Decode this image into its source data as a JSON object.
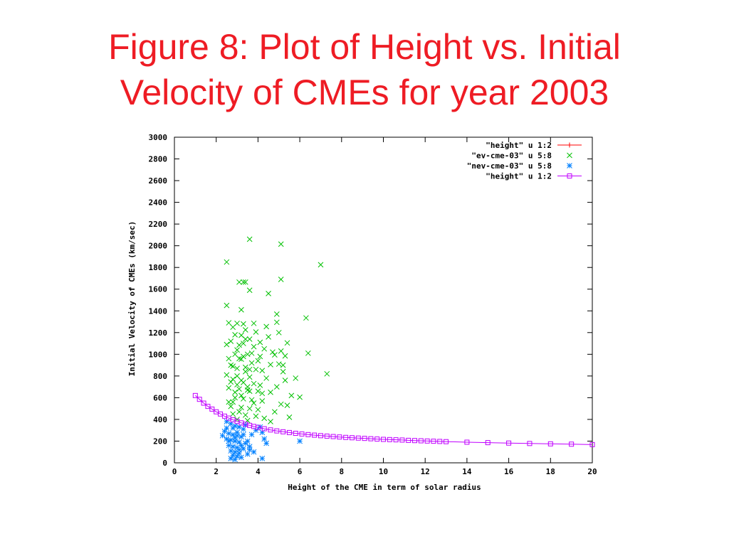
{
  "slide": {
    "title_line1": "Figure 8: Plot of Height vs. Initial",
    "title_line2": "Velocity of CMEs for year 2003",
    "title_color": "#ee1c24"
  },
  "chart_data": {
    "type": "scatter",
    "title": "",
    "xlabel": "Height of the CME in term of solar radius",
    "ylabel": "Initial Velocity of CMEs (km/sec)",
    "xlim": [
      0,
      20
    ],
    "ylim": [
      0,
      3000
    ],
    "x_ticks": [
      0,
      2,
      4,
      6,
      8,
      10,
      12,
      14,
      16,
      18,
      20
    ],
    "y_ticks": [
      0,
      200,
      400,
      600,
      800,
      1000,
      1200,
      1400,
      1600,
      1800,
      2000,
      2200,
      2400,
      2600,
      2800,
      3000
    ],
    "grid": false,
    "legend_position": "top-right",
    "series": [
      {
        "name": "\"height\" u 1:2",
        "marker": "plus-line",
        "color": "#ff0000",
        "points": []
      },
      {
        "name": "\"ev-cme-03\" u 5:8",
        "marker": "cross",
        "color": "#00c000",
        "points": [
          [
            3.6,
            2060
          ],
          [
            5.1,
            2015
          ],
          [
            2.5,
            1850
          ],
          [
            7.0,
            1825
          ],
          [
            5.1,
            1690
          ],
          [
            3.1,
            1665
          ],
          [
            3.3,
            1665
          ],
          [
            3.4,
            1665
          ],
          [
            3.6,
            1590
          ],
          [
            4.5,
            1560
          ],
          [
            2.5,
            1450
          ],
          [
            3.2,
            1410
          ],
          [
            4.9,
            1370
          ],
          [
            6.3,
            1335
          ],
          [
            3.8,
            1285
          ],
          [
            4.9,
            1295
          ],
          [
            2.6,
            1290
          ],
          [
            3.0,
            1285
          ],
          [
            3.3,
            1280
          ],
          [
            4.4,
            1255
          ],
          [
            2.8,
            1250
          ],
          [
            3.4,
            1225
          ],
          [
            3.9,
            1205
          ],
          [
            5.0,
            1200
          ],
          [
            3.2,
            1175
          ],
          [
            4.5,
            1160
          ],
          [
            3.6,
            1140
          ],
          [
            2.7,
            1120
          ],
          [
            4.1,
            1110
          ],
          [
            5.4,
            1105
          ],
          [
            2.5,
            1090
          ],
          [
            3.1,
            1085
          ],
          [
            3.8,
            1070
          ],
          [
            4.3,
            1050
          ],
          [
            5.1,
            1030
          ],
          [
            6.4,
            1010
          ],
          [
            2.9,
            1000
          ],
          [
            3.5,
            1000
          ],
          [
            4.8,
            995
          ],
          [
            5.3,
            985
          ],
          [
            2.6,
            960
          ],
          [
            3.2,
            955
          ],
          [
            4.0,
            940
          ],
          [
            3.7,
            920
          ],
          [
            4.6,
            905
          ],
          [
            5.0,
            910
          ],
          [
            2.8,
            890
          ],
          [
            3.4,
            880
          ],
          [
            3.9,
            860
          ],
          [
            4.2,
            850
          ],
          [
            5.2,
            840
          ],
          [
            7.3,
            820
          ],
          [
            2.5,
            810
          ],
          [
            3.0,
            800
          ],
          [
            3.6,
            790
          ],
          [
            4.4,
            780
          ],
          [
            5.3,
            760
          ],
          [
            2.7,
            745
          ],
          [
            3.3,
            740
          ],
          [
            3.8,
            730
          ],
          [
            4.1,
            715
          ],
          [
            4.9,
            700
          ],
          [
            2.6,
            690
          ],
          [
            3.1,
            680
          ],
          [
            3.5,
            670
          ],
          [
            4.0,
            660
          ],
          [
            4.6,
            650
          ],
          [
            5.6,
            620
          ],
          [
            6.0,
            605
          ],
          [
            2.9,
            600
          ],
          [
            3.3,
            590
          ],
          [
            3.7,
            580
          ],
          [
            4.2,
            570
          ],
          [
            5.1,
            540
          ],
          [
            5.4,
            530
          ],
          [
            2.7,
            520
          ],
          [
            3.2,
            510
          ],
          [
            3.6,
            500
          ],
          [
            4.0,
            490
          ],
          [
            4.8,
            470
          ],
          [
            2.8,
            450
          ],
          [
            3.4,
            440
          ],
          [
            3.9,
            430
          ],
          [
            5.5,
            420
          ],
          [
            4.3,
            410
          ],
          [
            3.0,
            400
          ],
          [
            3.5,
            390
          ],
          [
            4.6,
            380
          ],
          [
            2.6,
            560
          ],
          [
            3.0,
            720
          ],
          [
            3.1,
            960
          ],
          [
            3.3,
            1100
          ],
          [
            3.4,
            840
          ],
          [
            2.9,
            650
          ],
          [
            3.7,
            1010
          ],
          [
            3.2,
            620
          ],
          [
            2.8,
            770
          ],
          [
            4.1,
            980
          ],
          [
            3.6,
            860
          ],
          [
            3.0,
            1040
          ],
          [
            2.7,
            900
          ],
          [
            3.5,
            700
          ],
          [
            4.2,
            640
          ],
          [
            3.8,
            550
          ],
          [
            3.1,
            470
          ],
          [
            4.7,
            1020
          ],
          [
            5.2,
            900
          ],
          [
            5.8,
            780
          ],
          [
            3.4,
            1140
          ],
          [
            2.9,
            1180
          ],
          [
            3.3,
            980
          ],
          [
            3.0,
            870
          ],
          [
            3.2,
            760
          ],
          [
            3.6,
            660
          ],
          [
            2.8,
            560
          ]
        ]
      },
      {
        "name": "\"nev-cme-03\" u 5:8",
        "marker": "star",
        "color": "#0080ff",
        "points": [
          [
            2.5,
            380
          ],
          [
            2.7,
            360
          ],
          [
            2.9,
            340
          ],
          [
            3.1,
            330
          ],
          [
            3.3,
            310
          ],
          [
            2.4,
            290
          ],
          [
            2.6,
            270
          ],
          [
            2.8,
            260
          ],
          [
            3.0,
            250
          ],
          [
            3.2,
            240
          ],
          [
            2.5,
            220
          ],
          [
            2.7,
            210
          ],
          [
            2.9,
            200
          ],
          [
            3.1,
            190
          ],
          [
            3.4,
            180
          ],
          [
            2.6,
            160
          ],
          [
            2.8,
            150
          ],
          [
            3.0,
            140
          ],
          [
            3.3,
            130
          ],
          [
            2.7,
            110
          ],
          [
            2.9,
            100
          ],
          [
            3.1,
            90
          ],
          [
            2.8,
            70
          ],
          [
            3.0,
            60
          ],
          [
            2.7,
            40
          ],
          [
            2.9,
            30
          ],
          [
            3.2,
            50
          ],
          [
            3.5,
            80
          ],
          [
            3.6,
            120
          ],
          [
            3.5,
            200
          ],
          [
            3.7,
            260
          ],
          [
            3.9,
            300
          ],
          [
            4.1,
            330
          ],
          [
            4.2,
            280
          ],
          [
            4.3,
            220
          ],
          [
            4.4,
            180
          ],
          [
            4.2,
            40
          ],
          [
            6.0,
            200
          ],
          [
            2.3,
            250
          ],
          [
            2.5,
            320
          ],
          [
            3.4,
            350
          ],
          [
            3.6,
            150
          ],
          [
            3.8,
            100
          ],
          [
            2.6,
            200
          ],
          [
            3.0,
            280
          ],
          [
            3.2,
            160
          ],
          [
            2.8,
            320
          ],
          [
            3.3,
            260
          ],
          [
            2.9,
            230
          ],
          [
            3.1,
            120
          ]
        ]
      },
      {
        "name": "\"height\" u 1:2",
        "marker": "square-line",
        "color": "#c000ff",
        "points": [
          [
            1.0,
            620
          ],
          [
            1.2,
            585
          ],
          [
            1.4,
            550
          ],
          [
            1.6,
            520
          ],
          [
            1.8,
            495
          ],
          [
            2.0,
            470
          ],
          [
            2.2,
            450
          ],
          [
            2.4,
            430
          ],
          [
            2.6,
            412
          ],
          [
            2.8,
            396
          ],
          [
            3.0,
            382
          ],
          [
            3.2,
            368
          ],
          [
            3.4,
            356
          ],
          [
            3.6,
            345
          ],
          [
            3.8,
            335
          ],
          [
            4.0,
            326
          ],
          [
            4.3,
            314
          ],
          [
            4.6,
            303
          ],
          [
            4.9,
            294
          ],
          [
            5.2,
            286
          ],
          [
            5.5,
            279
          ],
          [
            5.8,
            272
          ],
          [
            6.1,
            266
          ],
          [
            6.4,
            260
          ],
          [
            6.7,
            255
          ],
          [
            7.0,
            250
          ],
          [
            7.3,
            246
          ],
          [
            7.6,
            242
          ],
          [
            7.9,
            238
          ],
          [
            8.2,
            234
          ],
          [
            8.5,
            231
          ],
          [
            8.8,
            228
          ],
          [
            9.1,
            225
          ],
          [
            9.4,
            222
          ],
          [
            9.7,
            219
          ],
          [
            10.0,
            216
          ],
          [
            10.3,
            214
          ],
          [
            10.6,
            212
          ],
          [
            10.9,
            210
          ],
          [
            11.2,
            207
          ],
          [
            11.5,
            205
          ],
          [
            11.8,
            203
          ],
          [
            12.1,
            201
          ],
          [
            12.4,
            199
          ],
          [
            12.7,
            197
          ],
          [
            13.0,
            195
          ],
          [
            14.0,
            190
          ],
          [
            15.0,
            186
          ],
          [
            16.0,
            182
          ],
          [
            17.0,
            178
          ],
          [
            18.0,
            175
          ],
          [
            19.0,
            172
          ],
          [
            20.0,
            168
          ]
        ]
      }
    ]
  }
}
